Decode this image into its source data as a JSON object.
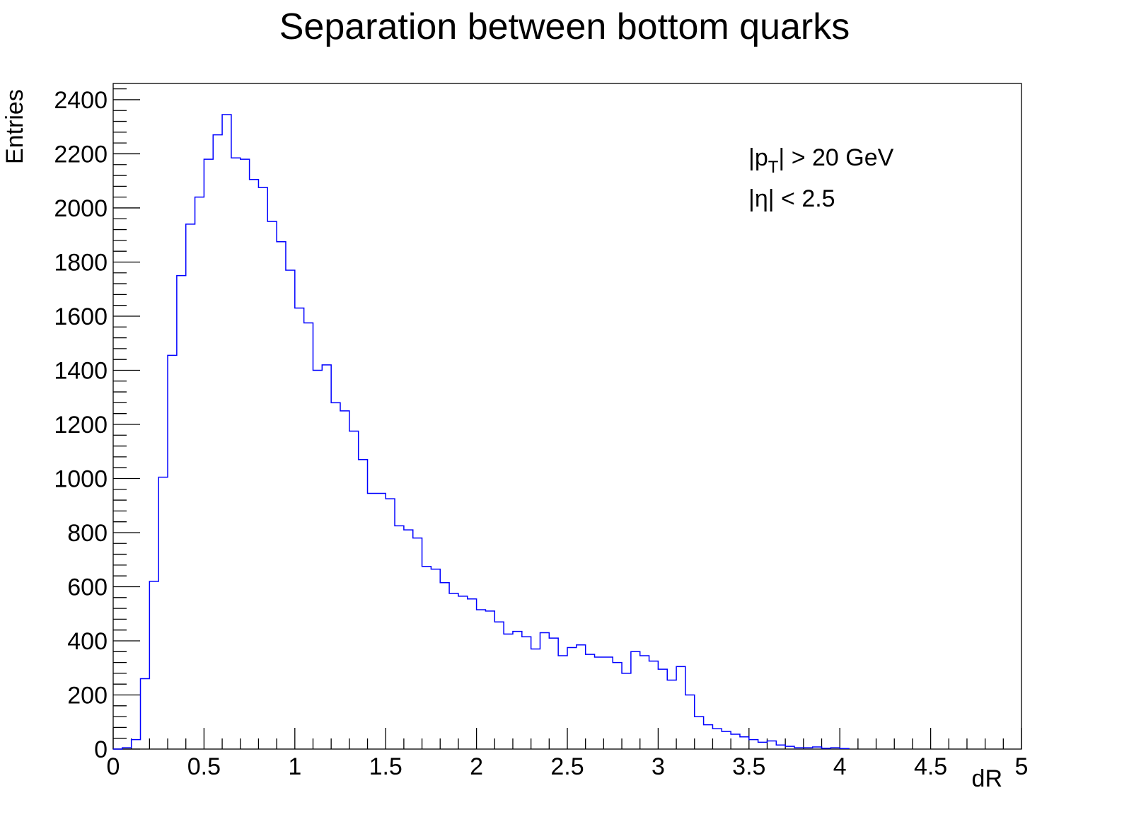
{
  "chart_data": {
    "type": "histogram",
    "title": "Separation between bottom quarks",
    "xlabel": "dR",
    "ylabel": "Entries",
    "xlim": [
      0,
      5
    ],
    "ylim": [
      0,
      2460
    ],
    "bin_width": 0.05,
    "x_ticks": [
      "0",
      "0.5",
      "1",
      "1.5",
      "2",
      "2.5",
      "3",
      "3.5",
      "4",
      "4.5",
      "5"
    ],
    "y_ticks": [
      "0",
      "200",
      "400",
      "600",
      "800",
      "1000",
      "1200",
      "1400",
      "1600",
      "1800",
      "2000",
      "2200",
      "2400"
    ],
    "line_color": "#0000ff",
    "annotations": {
      "pt_cut": {
        "prefix": "|p",
        "sub": "T",
        "suffix": "| > 20 GeV"
      },
      "eta_cut": "|η| < 2.5"
    },
    "values": [
      0,
      5,
      35,
      260,
      620,
      1005,
      1455,
      1750,
      1940,
      2040,
      2180,
      2270,
      2345,
      2185,
      2180,
      2105,
      2075,
      1950,
      1875,
      1770,
      1630,
      1575,
      1400,
      1420,
      1280,
      1250,
      1175,
      1070,
      945,
      945,
      925,
      825,
      810,
      780,
      675,
      665,
      615,
      575,
      565,
      555,
      515,
      510,
      470,
      425,
      435,
      415,
      370,
      430,
      410,
      345,
      375,
      385,
      350,
      340,
      340,
      320,
      280,
      360,
      345,
      325,
      295,
      255,
      305,
      200,
      120,
      90,
      75,
      65,
      55,
      45,
      35,
      25,
      30,
      15,
      10,
      5,
      5,
      8,
      3,
      5,
      2,
      0,
      0,
      0,
      0,
      0,
      0,
      0,
      0,
      0,
      0,
      0,
      0,
      0,
      0,
      0,
      0,
      0,
      0,
      0
    ]
  }
}
